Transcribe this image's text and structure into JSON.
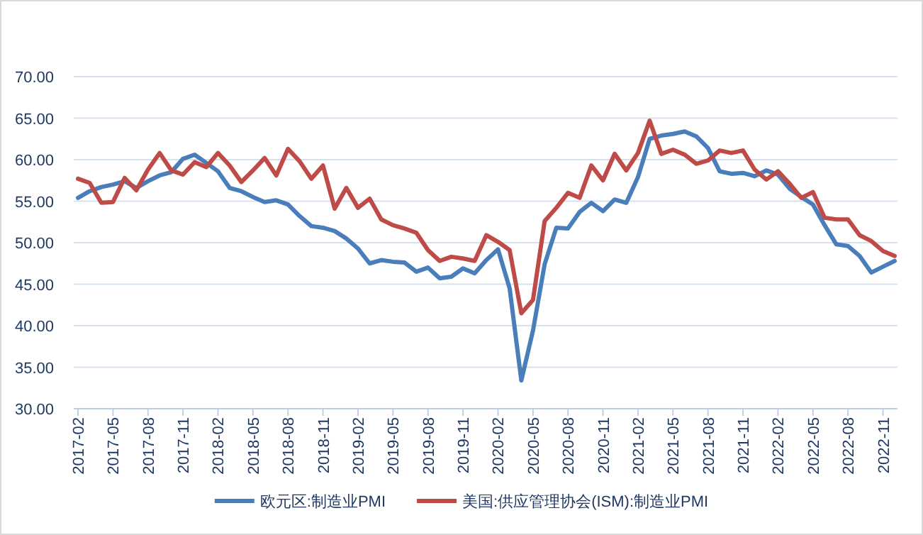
{
  "chart_data": {
    "type": "line",
    "categories": [
      "2017-02",
      null,
      null,
      "2017-05",
      null,
      null,
      "2017-08",
      null,
      null,
      "2017-11",
      null,
      null,
      "2018-02",
      null,
      null,
      "2018-05",
      null,
      null,
      "2018-08",
      null,
      null,
      "2018-11",
      null,
      null,
      "2019-02",
      null,
      null,
      "2019-05",
      null,
      null,
      "2019-08",
      null,
      null,
      "2019-11",
      null,
      null,
      "2020-02",
      null,
      null,
      "2020-05",
      null,
      null,
      "2020-08",
      null,
      null,
      "2020-11",
      null,
      null,
      "2021-02",
      null,
      null,
      "2021-05",
      null,
      null,
      "2021-08",
      null,
      null,
      "2021-11",
      null,
      null,
      "2022-02",
      null,
      null,
      "2022-05",
      null,
      null,
      "2022-08",
      null,
      null,
      "2022-11",
      null
    ],
    "series": [
      {
        "name": "欧元区:制造业PMI",
        "color": "#4a7ebb",
        "values": [
          55.4,
          56.2,
          56.7,
          57.0,
          57.4,
          56.6,
          57.4,
          58.1,
          58.5,
          60.1,
          60.6,
          59.6,
          58.6,
          56.6,
          56.2,
          55.5,
          54.9,
          55.1,
          54.6,
          53.2,
          52.0,
          51.8,
          51.4,
          50.5,
          49.3,
          47.5,
          47.9,
          47.7,
          47.6,
          46.5,
          47.0,
          45.7,
          45.9,
          46.9,
          46.3,
          47.9,
          49.2,
          44.5,
          33.4,
          39.4,
          47.4,
          51.8,
          51.7,
          53.7,
          54.8,
          53.8,
          55.2,
          54.8,
          57.9,
          62.5,
          62.9,
          63.1,
          63.4,
          62.8,
          61.4,
          58.6,
          58.3,
          58.4,
          58.0,
          58.7,
          58.2,
          56.5,
          55.5,
          54.6,
          52.1,
          49.8,
          49.6,
          48.4,
          46.4,
          47.1,
          47.8
        ]
      },
      {
        "name": "美国:供应管理协会(ISM):制造业PMI",
        "color": "#be4b48",
        "values": [
          57.7,
          57.2,
          54.8,
          54.9,
          57.8,
          56.3,
          58.8,
          60.8,
          58.7,
          58.2,
          59.7,
          59.1,
          60.8,
          59.3,
          57.3,
          58.7,
          60.2,
          58.1,
          61.3,
          59.8,
          57.7,
          59.3,
          54.1,
          56.6,
          54.2,
          55.3,
          52.8,
          52.1,
          51.7,
          51.2,
          49.1,
          47.8,
          48.3,
          48.1,
          47.8,
          50.9,
          50.1,
          49.1,
          41.5,
          43.1,
          52.6,
          54.2,
          56.0,
          55.4,
          59.3,
          57.5,
          60.7,
          58.7,
          60.8,
          64.7,
          60.7,
          61.2,
          60.6,
          59.5,
          59.9,
          61.1,
          60.8,
          61.1,
          58.8,
          57.6,
          58.6,
          57.1,
          55.4,
          56.1,
          53.0,
          52.8,
          52.8,
          50.9,
          50.2,
          49.0,
          48.4
        ]
      }
    ],
    "ylim": [
      30,
      70
    ],
    "yticks": [
      {
        "value": 30,
        "label": "30.00"
      },
      {
        "value": 35,
        "label": "35.00"
      },
      {
        "value": 40,
        "label": "40.00"
      },
      {
        "value": 45,
        "label": "45.00"
      },
      {
        "value": 50,
        "label": "50.00"
      },
      {
        "value": 55,
        "label": "55.00"
      },
      {
        "value": 60,
        "label": "60.00"
      },
      {
        "value": 65,
        "label": "65.00"
      },
      {
        "value": 70,
        "label": "70.00"
      }
    ],
    "grid": "y",
    "legend": "bottom",
    "marker": "none",
    "line_style": "solid"
  }
}
